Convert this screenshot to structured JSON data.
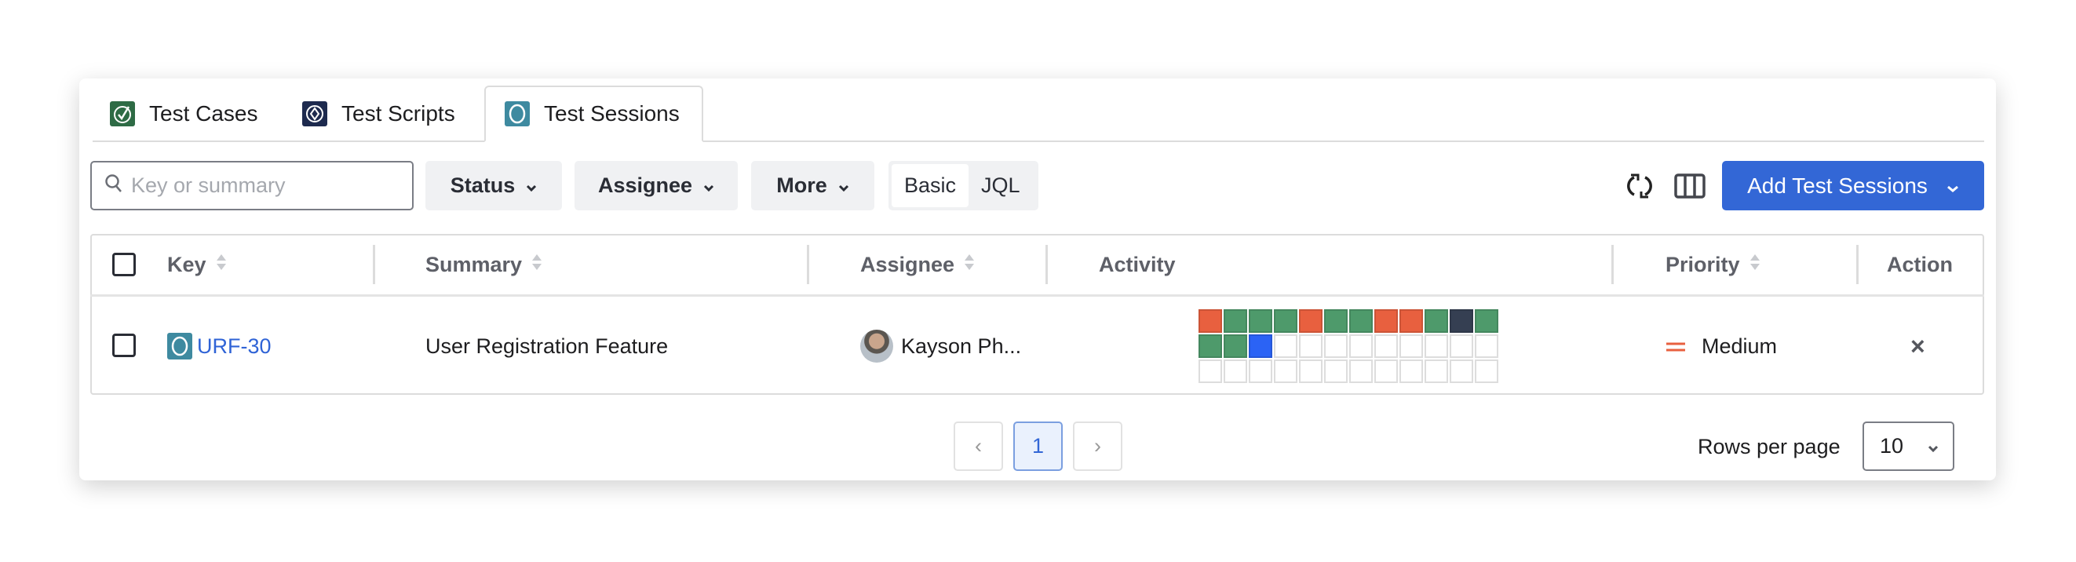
{
  "tabs": [
    {
      "label": "Test Cases",
      "icon": "check-circle-icon",
      "color": "#2e6b45"
    },
    {
      "label": "Test Scripts",
      "icon": "diamond-icon",
      "color": "#1d2a4e"
    },
    {
      "label": "Test Sessions",
      "icon": "circle-icon",
      "color": "#3e8aa0",
      "active": true
    }
  ],
  "toolbar": {
    "search_placeholder": "Key or summary",
    "search_value": "",
    "filters": [
      "Status",
      "Assignee",
      "More"
    ],
    "mode": {
      "basic": "Basic",
      "jql": "JQL",
      "selected": "Basic"
    },
    "add_label": "Add Test Sessions",
    "accent": "#3367d6"
  },
  "table": {
    "columns": [
      "Key",
      "Summary",
      "Assignee",
      "Activity",
      "Priority",
      "Action"
    ],
    "rows": [
      {
        "key": "URF-30",
        "summary": "User Registration Feature",
        "assignee": "Kayson Ph...",
        "priority": "Medium",
        "priority_color": "#e8603f",
        "action": "×",
        "activity": [
          "fail",
          "pass",
          "pass",
          "pass",
          "fail",
          "pass",
          "pass",
          "fail",
          "fail",
          "pass",
          "other",
          "pass",
          "pass",
          "pass",
          "current"
        ]
      }
    ]
  },
  "activity_colors": {
    "fail": "#e8603f",
    "pass": "#4e9a6b",
    "other": "#353f52",
    "current": "#2b63f5"
  },
  "pagination": {
    "prev": "‹",
    "page": "1",
    "next": "›",
    "rows_label": "Rows per page",
    "rows_value": "10"
  }
}
